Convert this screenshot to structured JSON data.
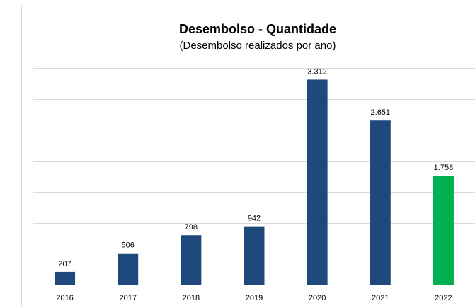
{
  "chart_data": {
    "type": "bar",
    "title": "Desembolso - Quantidade",
    "subtitle": "(Desembolso realizados por ano)",
    "categories": [
      "2016",
      "2017",
      "2018",
      "2019",
      "2020",
      "2021",
      "2022"
    ],
    "values": [
      207,
      506,
      798,
      942,
      3312,
      2651,
      1758
    ],
    "value_labels": [
      "207",
      "506",
      "798",
      "942",
      "3.312",
      "2.651",
      "1.758"
    ],
    "colors": [
      "#1f497d",
      "#1f497d",
      "#1f497d",
      "#1f497d",
      "#1f497d",
      "#1f497d",
      "#00b050"
    ],
    "ylim": [
      0,
      3500
    ],
    "yticks": [
      0,
      500,
      1000,
      1500,
      2000,
      2500,
      3000,
      3500
    ],
    "grid": true
  }
}
